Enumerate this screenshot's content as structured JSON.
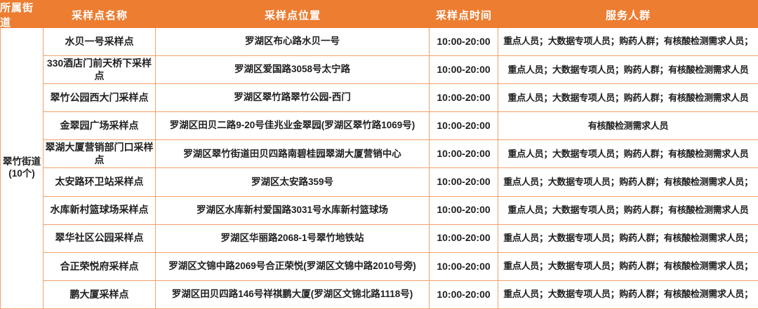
{
  "colors": {
    "header_bg": "#ed7d31",
    "border": "#f2a06a",
    "header_text": "#ffffff",
    "body_text": "#1f1f1f"
  },
  "table": {
    "headers": [
      "所属街道",
      "采样点名称",
      "采样点位置",
      "采样点时间",
      "服务人群"
    ],
    "street": {
      "name": "翠竹街道",
      "count": "(10个)"
    },
    "rows": [
      {
        "name": "水贝一号采样点",
        "location": "罗湖区布心路水贝一号",
        "time": "10:00-20:00",
        "service": "重点人员；大数据专项人员；购药人群；有核酸检测需求人员；"
      },
      {
        "name": "330酒店门前天桥下采样点",
        "location": "罗湖区爱国路3058号太宁路",
        "time": "10:00-20:00",
        "service": "重点人员；大数据专项人员；购药人群；有核酸检测需求人员"
      },
      {
        "name": "翠竹公园西大门采样点",
        "location": "罗湖区翠竹路翠竹公园-西门",
        "time": "10:00-20:00",
        "service": "重点人员；大数据专项人员；购药人群；有核酸检测需求人员"
      },
      {
        "name": "金翠园广场采样点",
        "location": "罗湖区田贝二路9-20号佳兆业金翠园(罗湖区翠竹路1069号)",
        "time": "10:00-20:00",
        "service": "有核酸检测需求人员"
      },
      {
        "name": "翠湖大厦营销部门口采样点",
        "location": "罗湖区翠竹街道田贝四路南碧桂园翠湖大厦营销中心",
        "time": "10:00-20:00",
        "service": "重点人员；大数据专项人员；购药人群；有核酸检测需求人员"
      },
      {
        "name": "太安路环卫站采样点",
        "location": "罗湖区太安路359号",
        "time": "10:00-20:00",
        "service": "重点人员；大数据专项人员；购药人群；有核酸检测需求人员；"
      },
      {
        "name": "水库新村篮球场采样点",
        "location": "罗湖区水库新村爱国路3031号水库新村篮球场",
        "time": "10:00-20:00",
        "service": "重点人员；大数据专项人员；购药人群；有核酸检测需求人员"
      },
      {
        "name": "翠华社区公园采样点",
        "location": "罗湖区华丽路2068-1号翠竹地铁站",
        "time": "10:00-20:00",
        "service": "重点人员；大数据专项人员；购药人群；有核酸检测需求人员；"
      },
      {
        "name": "合正荣悦府采样点",
        "location": "罗湖区文锦中路2069号合正荣悦(罗湖区文锦中路2010号旁)",
        "time": "10:00-20:00",
        "service": "重点人员；大数据专项人员；购药人群；有核酸检测需求人员；"
      },
      {
        "name": "鹏大厦采样点",
        "location": "罗湖区田贝四路146号祥祺鹏大厦(罗湖区文锦北路1118号)",
        "time": "10:00-20:00",
        "service": "重点人员；大数据专项人员；购药人群；有核酸检测需求人员；"
      }
    ]
  }
}
